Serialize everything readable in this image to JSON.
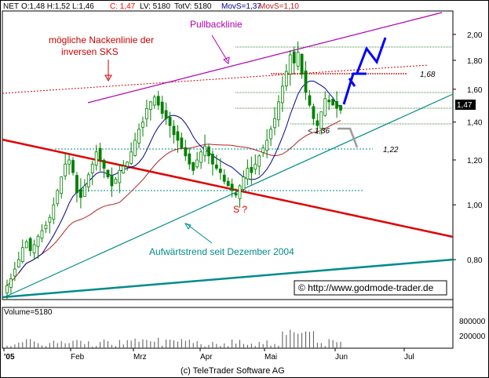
{
  "header": {
    "symbol": "NET",
    "ohlc": "O:1,48 H:1,52 L:1,46",
    "change": "C: 1,47",
    "last_volume": "LV: 5180",
    "total_volume": "TotV: 5180",
    "movs1": "MovS=1,37",
    "movs2": "MovS=1,10"
  },
  "annotations": {
    "neckline": "mögliche Nackenlinie der",
    "neckline2": "inversen SKS",
    "pullback": "Pullbacklinie",
    "s_question": "S ?",
    "uptrend": "Aufwärtstrend seit Dezember 2004",
    "copyright_url": "© http://www.godmode-trader.de",
    "level_168": "1,68",
    "level_122": "1,22",
    "level_136": "< 1,36",
    "last_price": "1,47"
  },
  "footer": "(c) TeleTrader Software AG",
  "colors": {
    "candle": "#008000",
    "ma_short": "#00008b",
    "ma_long": "#b22222",
    "trend_red": "#e00000",
    "trend_teal": "#008b8b",
    "pullback": "#b000b0",
    "projection": "#0000ff"
  },
  "chart_data": {
    "type": "candlestick",
    "y_scale": "log",
    "ylim": [
      0.68,
      2.2
    ],
    "y_ticks": [
      "2,00",
      "1,80",
      "1,60",
      "1,40",
      "1,20",
      "1,00",
      "0,80"
    ],
    "x_ticks": [
      "'05",
      "Feb",
      "Mrz",
      "Apr",
      "Mai",
      "Jun",
      "Jul"
    ],
    "volume_label": "Volume=5180",
    "volume_ticks": [
      "800000",
      "200000"
    ],
    "closes": [
      0.72,
      0.74,
      0.77,
      0.8,
      0.84,
      0.86,
      0.83,
      0.85,
      0.88,
      0.9,
      0.92,
      0.95,
      1.0,
      1.06,
      1.12,
      1.18,
      1.2,
      1.14,
      1.05,
      1.03,
      1.08,
      1.13,
      1.18,
      1.24,
      1.2,
      1.16,
      1.12,
      1.08,
      1.11,
      1.15,
      1.17,
      1.19,
      1.24,
      1.3,
      1.36,
      1.4,
      1.48,
      1.52,
      1.55,
      1.5,
      1.45,
      1.42,
      1.38,
      1.33,
      1.3,
      1.26,
      1.22,
      1.18,
      1.15,
      1.2,
      1.24,
      1.27,
      1.22,
      1.18,
      1.16,
      1.14,
      1.1,
      1.08,
      1.06,
      1.04,
      1.08,
      1.12,
      1.16,
      1.14,
      1.18,
      1.22,
      1.26,
      1.3,
      1.36,
      1.42,
      1.52,
      1.62,
      1.72,
      1.84,
      1.78,
      1.86,
      1.7,
      1.58,
      1.5,
      1.42,
      1.38,
      1.46,
      1.54,
      1.52,
      1.5,
      1.48,
      1.47
    ],
    "ma_short_last": 1.37,
    "ma_long_last": 1.1
  }
}
